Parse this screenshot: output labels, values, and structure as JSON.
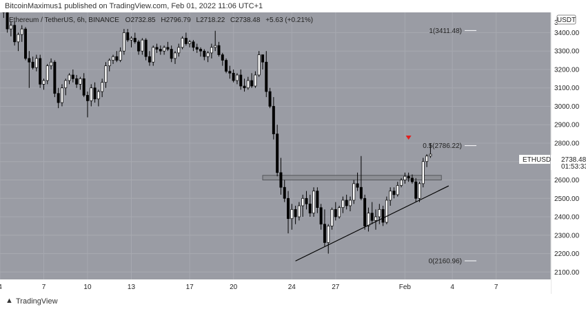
{
  "header": {
    "published": "BitcoinMaximus1 published on TradingView.com, Feb 01, 2022 11:06 UTC+1"
  },
  "footer": {
    "brand": "TradingView",
    "logo": "tradingview-logo-icon"
  },
  "colors": {
    "background": "#9a9ca4",
    "bull": "#ffffff",
    "bear": "#000000",
    "marker": "#e41e1e"
  },
  "symbol_info": {
    "name": "Ethereum / TetherUS, 6h, BINANCE",
    "open": "O2732.85",
    "high": "H2796.79",
    "low": "L2718.22",
    "close": "C2738.48",
    "change": "+5.63 (+0.21%)"
  },
  "currency": "USDT",
  "price_tag": {
    "symbol": "ETHUSDT",
    "price": "2738.48",
    "countdown": "01:53:33"
  },
  "fib_levels": [
    {
      "label": "1(3411.48)",
      "value": 3411.48
    },
    {
      "label": "0.5(2786.22)",
      "value": 2786.22
    },
    {
      "label": "0(2160.96)",
      "value": 2160.96
    }
  ],
  "top_right_tick": "3",
  "chart_data": {
    "type": "candlestick",
    "symbol": "ETHUSDT",
    "timeframe": "6h",
    "y_ticks": [
      2100,
      2200,
      2300,
      2400,
      2500,
      2600,
      2700,
      2800,
      2900,
      3000,
      3100,
      3200,
      3300,
      3400
    ],
    "y_tick_labels": [
      "2100.00",
      "2200.00",
      "2300.00",
      "2400.00",
      "2500.00",
      "2600.00",
      "2700.00",
      "2800.00",
      "2900.00",
      "3000.00",
      "3100.00",
      "3200.00",
      "3300.00",
      "3400.00"
    ],
    "ylim": [
      2060,
      3510
    ],
    "x_ticks": [
      {
        "label": "4",
        "index": -1
      },
      {
        "label": "7",
        "index": 11
      },
      {
        "label": "10",
        "index": 23
      },
      {
        "label": "13",
        "index": 35
      },
      {
        "label": "17",
        "index": 51
      },
      {
        "label": "20",
        "index": 63
      },
      {
        "label": "24",
        "index": 79
      },
      {
        "label": "27",
        "index": 91
      },
      {
        "label": "Feb",
        "index": 110
      },
      {
        "label": "4",
        "index": 123
      },
      {
        "label": "7",
        "index": 135
      }
    ],
    "xlim": [
      -1,
      150
    ],
    "resistance_zone": {
      "from_index": 71,
      "to_index": 120,
      "low": 2600,
      "high": 2625
    },
    "ascending_trendline": {
      "from": {
        "index": 80,
        "price": 2160
      },
      "to": {
        "index": 122,
        "price": 2568
      }
    },
    "marker": {
      "index": 111,
      "price": 2830
    },
    "candles": [
      [
        3600,
        3630,
        3480,
        3510
      ],
      [
        3510,
        3550,
        3400,
        3420
      ],
      [
        3420,
        3460,
        3380,
        3440
      ],
      [
        3440,
        3460,
        3330,
        3350
      ],
      [
        3350,
        3400,
        3300,
        3390
      ],
      [
        3390,
        3440,
        3350,
        3420
      ],
      [
        3420,
        3430,
        3250,
        3260
      ],
      [
        3260,
        3300,
        3100,
        3240
      ],
      [
        3240,
        3270,
        3200,
        3210
      ],
      [
        3210,
        3280,
        3190,
        3260
      ],
      [
        3260,
        3280,
        3100,
        3120
      ],
      [
        3120,
        3150,
        3090,
        3140
      ],
      [
        3140,
        3230,
        3120,
        3220
      ],
      [
        3220,
        3260,
        3200,
        3240
      ],
      [
        3240,
        3250,
        3050,
        3070
      ],
      [
        3070,
        3100,
        2990,
        3020
      ],
      [
        3020,
        3120,
        3000,
        3100
      ],
      [
        3100,
        3150,
        3060,
        3140
      ],
      [
        3140,
        3180,
        3120,
        3170
      ],
      [
        3170,
        3200,
        3130,
        3150
      ],
      [
        3150,
        3170,
        3100,
        3120
      ],
      [
        3120,
        3160,
        3090,
        3150
      ],
      [
        3150,
        3180,
        3050,
        3060
      ],
      [
        3060,
        3080,
        2940,
        3030
      ],
      [
        3030,
        3120,
        3000,
        3100
      ],
      [
        3100,
        3130,
        3020,
        3040
      ],
      [
        3040,
        3090,
        3000,
        3080
      ],
      [
        3080,
        3150,
        3050,
        3130
      ],
      [
        3130,
        3240,
        3100,
        3220
      ],
      [
        3220,
        3260,
        3190,
        3250
      ],
      [
        3250,
        3280,
        3230,
        3270
      ],
      [
        3270,
        3300,
        3240,
        3250
      ],
      [
        3250,
        3320,
        3240,
        3300
      ],
      [
        3300,
        3420,
        3280,
        3400
      ],
      [
        3400,
        3420,
        3350,
        3360
      ],
      [
        3360,
        3380,
        3320,
        3370
      ],
      [
        3370,
        3400,
        3340,
        3350
      ],
      [
        3350,
        3360,
        3280,
        3300
      ],
      [
        3300,
        3370,
        3280,
        3360
      ],
      [
        3360,
        3370,
        3250,
        3270
      ],
      [
        3270,
        3300,
        3220,
        3240
      ],
      [
        3240,
        3330,
        3220,
        3320
      ],
      [
        3320,
        3340,
        3290,
        3310
      ],
      [
        3310,
        3330,
        3280,
        3300
      ],
      [
        3300,
        3330,
        3280,
        3320
      ],
      [
        3320,
        3350,
        3300,
        3310
      ],
      [
        3310,
        3330,
        3240,
        3260
      ],
      [
        3260,
        3300,
        3230,
        3290
      ],
      [
        3290,
        3340,
        3270,
        3320
      ],
      [
        3320,
        3380,
        3310,
        3370
      ],
      [
        3370,
        3400,
        3330,
        3340
      ],
      [
        3340,
        3360,
        3320,
        3350
      ],
      [
        3350,
        3360,
        3300,
        3320
      ],
      [
        3320,
        3340,
        3290,
        3310
      ],
      [
        3310,
        3320,
        3270,
        3300
      ],
      [
        3300,
        3310,
        3250,
        3270
      ],
      [
        3270,
        3300,
        3240,
        3290
      ],
      [
        3290,
        3340,
        3260,
        3320
      ],
      [
        3320,
        3410,
        3300,
        3330
      ],
      [
        3330,
        3350,
        3270,
        3280
      ],
      [
        3280,
        3290,
        3220,
        3250
      ],
      [
        3250,
        3260,
        3180,
        3190
      ],
      [
        3190,
        3220,
        3150,
        3180
      ],
      [
        3180,
        3200,
        3130,
        3140
      ],
      [
        3140,
        3180,
        3120,
        3170
      ],
      [
        3170,
        3200,
        3090,
        3110
      ],
      [
        3110,
        3150,
        3080,
        3100
      ],
      [
        3100,
        3160,
        3090,
        3140
      ],
      [
        3140,
        3180,
        3100,
        3110
      ],
      [
        3110,
        3190,
        3100,
        3170
      ],
      [
        3170,
        3300,
        3160,
        3280
      ],
      [
        3280,
        3280,
        3200,
        3240
      ],
      [
        3240,
        3300,
        3050,
        3080
      ],
      [
        3080,
        3100,
        2990,
        3000
      ],
      [
        3000,
        3050,
        2820,
        2850
      ],
      [
        2850,
        2900,
        2620,
        2640
      ],
      [
        2640,
        2720,
        2520,
        2560
      ],
      [
        2560,
        2600,
        2480,
        2500
      ],
      [
        2500,
        2540,
        2310,
        2390
      ],
      [
        2390,
        2470,
        2330,
        2440
      ],
      [
        2440,
        2460,
        2360,
        2400
      ],
      [
        2400,
        2480,
        2380,
        2460
      ],
      [
        2460,
        2520,
        2400,
        2500
      ],
      [
        2500,
        2540,
        2440,
        2470
      ],
      [
        2470,
        2520,
        2400,
        2420
      ],
      [
        2420,
        2560,
        2400,
        2540
      ],
      [
        2540,
        2560,
        2420,
        2450
      ],
      [
        2450,
        2470,
        2330,
        2360
      ],
      [
        2360,
        2440,
        2240,
        2260
      ],
      [
        2260,
        2360,
        2200,
        2350
      ],
      [
        2350,
        2450,
        2330,
        2440
      ],
      [
        2440,
        2480,
        2380,
        2400
      ],
      [
        2400,
        2460,
        2390,
        2450
      ],
      [
        2450,
        2510,
        2420,
        2490
      ],
      [
        2490,
        2520,
        2440,
        2460
      ],
      [
        2460,
        2510,
        2430,
        2490
      ],
      [
        2490,
        2600,
        2470,
        2580
      ],
      [
        2580,
        2640,
        2540,
        2560
      ],
      [
        2560,
        2730,
        2490,
        2500
      ],
      [
        2500,
        2520,
        2330,
        2350
      ],
      [
        2350,
        2450,
        2320,
        2420
      ],
      [
        2420,
        2480,
        2360,
        2380
      ],
      [
        2380,
        2440,
        2330,
        2400
      ],
      [
        2400,
        2470,
        2360,
        2440
      ],
      [
        2440,
        2460,
        2350,
        2370
      ],
      [
        2370,
        2510,
        2360,
        2490
      ],
      [
        2490,
        2560,
        2460,
        2540
      ],
      [
        2540,
        2560,
        2500,
        2520
      ],
      [
        2520,
        2590,
        2510,
        2570
      ],
      [
        2570,
        2610,
        2560,
        2600
      ],
      [
        2600,
        2640,
        2580,
        2620
      ],
      [
        2620,
        2640,
        2590,
        2610
      ],
      [
        2610,
        2630,
        2580,
        2590
      ],
      [
        2590,
        2610,
        2480,
        2500
      ],
      [
        2500,
        2590,
        2480,
        2580
      ],
      [
        2580,
        2720,
        2560,
        2700
      ],
      [
        2700,
        2740,
        2670,
        2730
      ],
      [
        2730,
        2800,
        2720,
        2740
      ]
    ]
  }
}
